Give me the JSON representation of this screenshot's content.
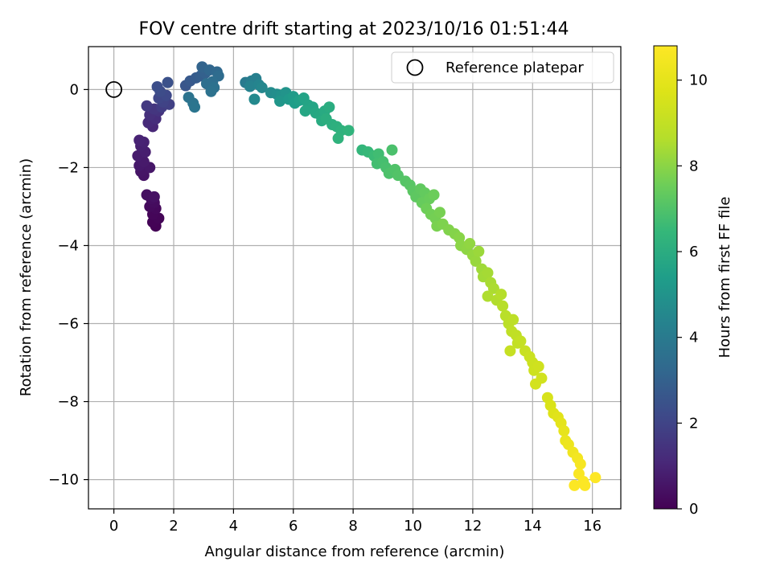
{
  "chart_data": {
    "type": "scatter",
    "title": "FOV centre drift starting at 2023/10/16 01:51:44",
    "xlabel": "Angular distance from reference (arcmin)",
    "ylabel": "Rotation from reference (arcmin)",
    "colorbar_label": "Hours from first FF file",
    "colormap": "viridis",
    "xlim": [
      -0.85,
      16.95
    ],
    "ylim": [
      -10.75,
      1.1
    ],
    "clim": [
      0,
      10.8
    ],
    "xticks": [
      0,
      2,
      4,
      6,
      8,
      10,
      12,
      14,
      16
    ],
    "yticks": [
      0,
      -2,
      -4,
      -6,
      -8,
      -10
    ],
    "cticks": [
      0,
      2,
      4,
      6,
      8,
      10
    ],
    "xtick_labels": [
      "0",
      "2",
      "4",
      "6",
      "8",
      "10",
      "12",
      "14",
      "16"
    ],
    "ytick_labels": [
      "0",
      "−2",
      "−4",
      "−6",
      "−8",
      "−10"
    ],
    "ctick_labels": [
      "0",
      "2",
      "4",
      "6",
      "8",
      "10"
    ],
    "grid": true,
    "legend": {
      "placement": "top-right",
      "entries": [
        "Reference platepar"
      ]
    },
    "reference_point": {
      "name": "Reference platepar",
      "x": 0,
      "y": 0,
      "marker": "open-circle"
    },
    "points": [
      [
        1.4,
        -3.5,
        0.02
      ],
      [
        1.3,
        -3.4,
        0.06
      ],
      [
        1.5,
        -3.3,
        0.1
      ],
      [
        1.3,
        -3.2,
        0.15
      ],
      [
        1.4,
        -3.05,
        0.2
      ],
      [
        1.2,
        -3.0,
        0.25
      ],
      [
        1.35,
        -2.9,
        0.3
      ],
      [
        1.25,
        -2.8,
        0.35
      ],
      [
        1.1,
        -2.7,
        0.4
      ],
      [
        1.35,
        -2.75,
        0.45
      ],
      [
        1.0,
        -2.2,
        0.5
      ],
      [
        0.9,
        -2.1,
        0.55
      ],
      [
        1.2,
        -2.0,
        0.6
      ],
      [
        0.85,
        -1.95,
        0.65
      ],
      [
        1.0,
        -1.85,
        0.7
      ],
      [
        0.8,
        -1.7,
        0.75
      ],
      [
        1.05,
        -1.6,
        0.8
      ],
      [
        0.9,
        -1.45,
        0.85
      ],
      [
        1.0,
        -1.35,
        0.9
      ],
      [
        0.85,
        -1.3,
        0.95
      ],
      [
        1.3,
        -0.95,
        1.05
      ],
      [
        1.15,
        -0.85,
        1.15
      ],
      [
        1.4,
        -0.75,
        1.25
      ],
      [
        1.2,
        -0.65,
        1.35
      ],
      [
        1.5,
        -0.55,
        1.45
      ],
      [
        1.35,
        -0.5,
        1.55
      ],
      [
        1.1,
        -0.42,
        1.65
      ],
      [
        1.6,
        -0.45,
        1.75
      ],
      [
        1.85,
        -0.38,
        1.85
      ],
      [
        1.65,
        -0.32,
        1.95
      ],
      [
        1.5,
        -0.22,
        2.05
      ],
      [
        1.75,
        -0.15,
        2.15
      ],
      [
        1.55,
        -0.05,
        2.25
      ],
      [
        1.45,
        0.07,
        2.35
      ],
      [
        1.8,
        0.18,
        2.45
      ],
      [
        2.4,
        0.1,
        2.6
      ],
      [
        2.55,
        0.22,
        2.7
      ],
      [
        2.75,
        0.3,
        2.8
      ],
      [
        2.9,
        0.35,
        2.9
      ],
      [
        3.05,
        0.42,
        3.0
      ],
      [
        2.95,
        0.58,
        3.1
      ],
      [
        3.2,
        0.5,
        3.2
      ],
      [
        3.45,
        0.45,
        3.3
      ],
      [
        3.5,
        0.35,
        3.4
      ],
      [
        3.3,
        0.2,
        3.5
      ],
      [
        3.1,
        0.15,
        3.55
      ],
      [
        3.35,
        0.05,
        3.6
      ],
      [
        3.25,
        -0.05,
        3.65
      ],
      [
        2.5,
        -0.2,
        3.7
      ],
      [
        2.65,
        -0.35,
        3.75
      ],
      [
        2.7,
        -0.45,
        3.8
      ],
      [
        4.4,
        0.18,
        4.0
      ],
      [
        4.6,
        0.22,
        4.1
      ],
      [
        4.75,
        0.28,
        4.2
      ],
      [
        4.55,
        0.08,
        4.3
      ],
      [
        4.85,
        0.12,
        4.4
      ],
      [
        4.95,
        0.05,
        4.5
      ],
      [
        4.7,
        -0.25,
        4.6
      ],
      [
        5.25,
        -0.08,
        4.7
      ],
      [
        5.45,
        -0.12,
        4.8
      ],
      [
        5.6,
        -0.15,
        4.9
      ],
      [
        5.75,
        -0.08,
        5.0
      ],
      [
        5.55,
        -0.3,
        5.1
      ],
      [
        5.85,
        -0.25,
        5.2
      ],
      [
        6.0,
        -0.18,
        5.3
      ],
      [
        6.05,
        -0.35,
        5.4
      ],
      [
        6.2,
        -0.28,
        5.5
      ],
      [
        6.35,
        -0.22,
        5.6
      ],
      [
        6.5,
        -0.4,
        5.65
      ],
      [
        6.65,
        -0.45,
        5.7
      ],
      [
        6.4,
        -0.55,
        5.75
      ],
      [
        6.75,
        -0.6,
        5.8
      ],
      [
        6.9,
        -0.65,
        5.85
      ],
      [
        7.05,
        -0.55,
        5.9
      ],
      [
        6.95,
        -0.8,
        5.95
      ],
      [
        7.2,
        -0.45,
        6.0
      ],
      [
        7.1,
        -0.75,
        6.05
      ],
      [
        7.3,
        -0.9,
        6.1
      ],
      [
        7.45,
        -0.95,
        6.15
      ],
      [
        7.6,
        -1.05,
        6.2
      ],
      [
        7.5,
        -1.25,
        6.25
      ],
      [
        7.85,
        -1.05,
        6.3
      ],
      [
        8.3,
        -1.55,
        6.4
      ],
      [
        8.5,
        -1.6,
        6.5
      ],
      [
        8.7,
        -1.7,
        6.6
      ],
      [
        8.85,
        -1.65,
        6.7
      ],
      [
        8.8,
        -1.9,
        6.75
      ],
      [
        9.0,
        -1.85,
        6.8
      ],
      [
        9.1,
        -2.0,
        6.85
      ],
      [
        9.3,
        -1.55,
        6.9
      ],
      [
        9.2,
        -2.15,
        6.95
      ],
      [
        9.4,
        -2.05,
        7.0
      ],
      [
        9.5,
        -2.2,
        7.05
      ],
      [
        9.75,
        -2.35,
        7.1
      ],
      [
        9.9,
        -2.45,
        7.15
      ],
      [
        10.0,
        -2.6,
        7.2
      ],
      [
        10.1,
        -2.75,
        7.25
      ],
      [
        10.25,
        -2.55,
        7.3
      ],
      [
        10.4,
        -2.65,
        7.35
      ],
      [
        10.3,
        -2.9,
        7.4
      ],
      [
        10.55,
        -2.8,
        7.45
      ],
      [
        10.7,
        -2.7,
        7.5
      ],
      [
        10.45,
        -3.05,
        7.55
      ],
      [
        10.6,
        -3.2,
        7.6
      ],
      [
        10.75,
        -3.3,
        7.65
      ],
      [
        10.9,
        -3.15,
        7.7
      ],
      [
        10.8,
        -3.5,
        7.75
      ],
      [
        11.0,
        -3.45,
        7.8
      ],
      [
        11.2,
        -3.6,
        7.85
      ],
      [
        11.4,
        -3.7,
        7.9
      ],
      [
        11.55,
        -3.8,
        7.95
      ],
      [
        11.6,
        -4.0,
        8.0
      ],
      [
        11.8,
        -4.1,
        8.05
      ],
      [
        11.9,
        -3.95,
        8.1
      ],
      [
        12.0,
        -4.25,
        8.15
      ],
      [
        12.1,
        -4.4,
        8.2
      ],
      [
        12.2,
        -4.15,
        8.25
      ],
      [
        12.3,
        -4.6,
        8.3
      ],
      [
        12.35,
        -4.8,
        8.35
      ],
      [
        12.5,
        -4.7,
        8.4
      ],
      [
        12.6,
        -4.95,
        8.45
      ],
      [
        12.7,
        -5.1,
        8.5
      ],
      [
        12.5,
        -5.3,
        8.55
      ],
      [
        12.8,
        -5.4,
        8.6
      ],
      [
        12.95,
        -5.25,
        8.65
      ],
      [
        13.0,
        -5.55,
        8.7
      ],
      [
        13.1,
        -5.8,
        8.75
      ],
      [
        13.2,
        -6.0,
        8.8
      ],
      [
        13.35,
        -5.9,
        8.85
      ],
      [
        13.3,
        -6.2,
        8.9
      ],
      [
        13.45,
        -6.3,
        8.95
      ],
      [
        13.5,
        -6.5,
        9.0
      ],
      [
        13.6,
        -6.45,
        9.05
      ],
      [
        13.25,
        -6.7,
        9.1
      ],
      [
        13.75,
        -6.7,
        9.15
      ],
      [
        13.9,
        -6.85,
        9.2
      ],
      [
        14.0,
        -7.0,
        9.25
      ],
      [
        14.05,
        -7.2,
        9.3
      ],
      [
        14.2,
        -7.1,
        9.35
      ],
      [
        14.3,
        -7.4,
        9.4
      ],
      [
        14.1,
        -7.55,
        9.45
      ],
      [
        14.5,
        -7.9,
        9.55
      ],
      [
        14.6,
        -8.1,
        9.65
      ],
      [
        14.7,
        -8.3,
        9.75
      ],
      [
        14.85,
        -8.4,
        9.85
      ],
      [
        14.95,
        -8.55,
        9.95
      ],
      [
        15.05,
        -8.75,
        10.05
      ],
      [
        15.1,
        -9.0,
        10.15
      ],
      [
        15.2,
        -9.1,
        10.25
      ],
      [
        15.35,
        -9.3,
        10.35
      ],
      [
        15.5,
        -9.45,
        10.45
      ],
      [
        15.6,
        -9.6,
        10.55
      ],
      [
        15.55,
        -9.85,
        10.65
      ],
      [
        15.7,
        -10.05,
        10.72
      ],
      [
        15.4,
        -10.15,
        10.75
      ],
      [
        15.75,
        -10.15,
        10.78
      ],
      [
        16.1,
        -9.95,
        10.8
      ]
    ]
  }
}
